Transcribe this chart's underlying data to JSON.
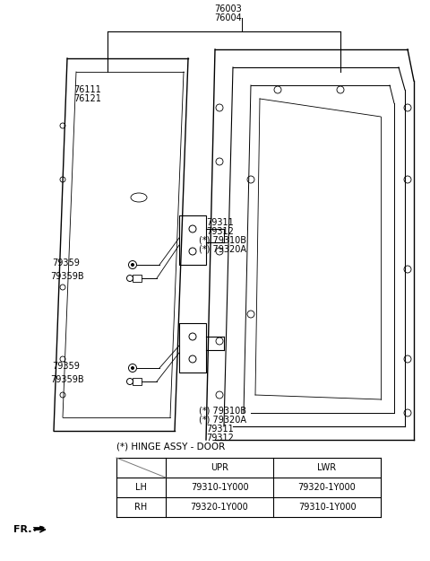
{
  "background_color": "#ffffff",
  "title_label": "(*) HINGE ASSY - DOOR",
  "table": {
    "headers": [
      "",
      "UPR",
      "LWR"
    ],
    "rows": [
      [
        "LH",
        "79310-1Y000",
        "79320-1Y000"
      ],
      [
        "RH",
        "79320-1Y000",
        "79310-1Y000"
      ]
    ]
  },
  "part_labels_top": [
    "76003",
    "76004"
  ],
  "part_labels_door_outer": [
    "76111",
    "76121"
  ],
  "part_labels_upper_hinge": [
    "79311",
    "79312",
    "(*) 79310B",
    "(*) 79320A"
  ],
  "part_labels_lower_hinge": [
    "(*) 79310B",
    "(*) 79320A",
    "79311",
    "79312"
  ],
  "part_labels_bolt_upper": [
    "79359",
    "79359B"
  ],
  "part_labels_bolt_lower": [
    "79359",
    "79359B"
  ],
  "line_color": "#000000",
  "text_color": "#000000",
  "font_size": 7
}
